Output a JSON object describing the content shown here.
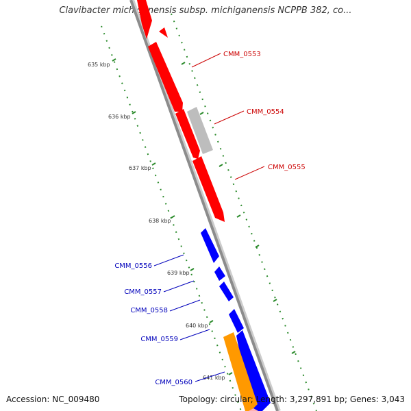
{
  "title": "Clavibacter michiganensis subsp. michiganensis NCPPB 382, co...",
  "footer": {
    "accession": "Accession: NC_009480",
    "summary": "Topology: circular; Length: 3,297,891 bp; Genes: 3,043"
  },
  "colors": {
    "backbone": "#8c8c8c",
    "forward_gene": "#ff0000",
    "reverse_gene": "#0000ff",
    "pseudo_gene": "#bdbdbd",
    "rna_gene": "#ff9900",
    "tick": "#2a8a2a",
    "forward_label": "#cc0000",
    "reverse_label": "#0000bb"
  },
  "kbp_labels": [
    "635 kbp",
    "636 kbp",
    "637 kbp",
    "638 kbp",
    "639 kbp",
    "640 kbp",
    "641 kbp"
  ],
  "gene_labels": {
    "forward": [
      "CMM_0553",
      "CMM_0554",
      "CMM_0555"
    ],
    "reverse": [
      "CMM_0556",
      "CMM_0557",
      "CMM_0558",
      "CMM_0559",
      "CMM_0560"
    ]
  }
}
